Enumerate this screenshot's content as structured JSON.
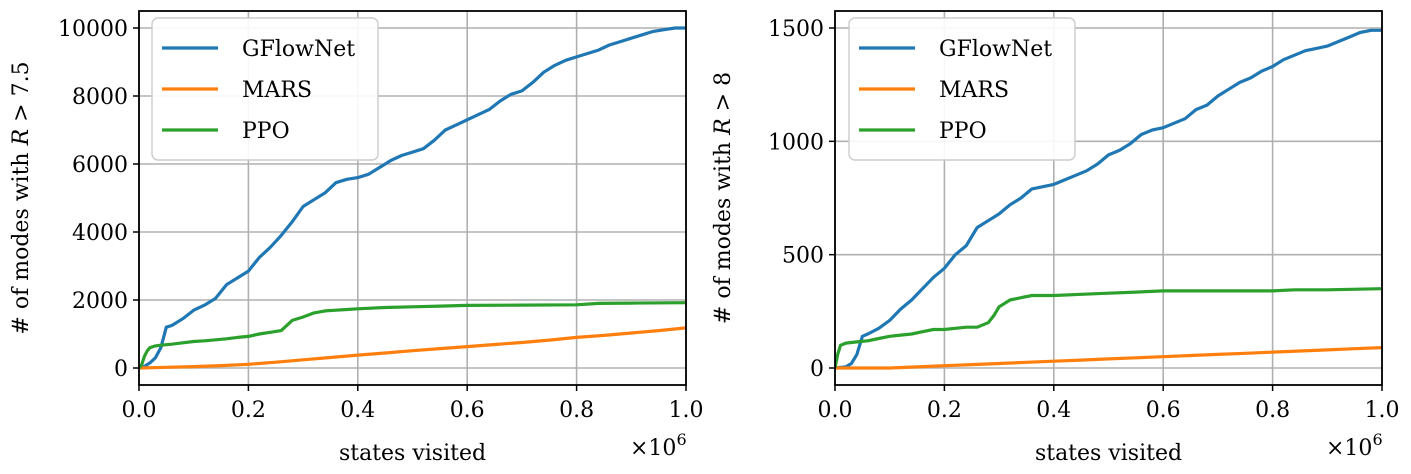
{
  "chart_data": [
    {
      "type": "line",
      "title": "",
      "xlabel": "states visited",
      "ylabel": "# of modes with R > 7.5",
      "ylabel_prefix": "# of modes with ",
      "ylabel_var": "R",
      "ylabel_suffix": " > 7.5",
      "x_scale_label": "×10",
      "x_scale_exp": "6",
      "xlim": [
        0,
        1.0
      ],
      "ylim": [
        -500,
        10500
      ],
      "xticks": [
        0.0,
        0.2,
        0.4,
        0.6,
        0.8,
        1.0
      ],
      "xtick_labels": [
        "0.0",
        "0.2",
        "0.4",
        "0.6",
        "0.8",
        "1.0"
      ],
      "yticks": [
        0,
        2000,
        4000,
        6000,
        8000,
        10000
      ],
      "ytick_labels": [
        "0",
        "2000",
        "4000",
        "6000",
        "8000",
        "10000"
      ],
      "grid": true,
      "legend_position": "upper-left",
      "series": [
        {
          "name": "GFlowNet",
          "color": "#1f77b4",
          "x": [
            0,
            0.01,
            0.02,
            0.03,
            0.04,
            0.05,
            0.06,
            0.08,
            0.1,
            0.12,
            0.14,
            0.16,
            0.18,
            0.2,
            0.22,
            0.24,
            0.26,
            0.28,
            0.3,
            0.32,
            0.34,
            0.36,
            0.38,
            0.4,
            0.42,
            0.44,
            0.46,
            0.48,
            0.5,
            0.52,
            0.54,
            0.56,
            0.58,
            0.6,
            0.62,
            0.64,
            0.66,
            0.68,
            0.7,
            0.72,
            0.74,
            0.76,
            0.78,
            0.8,
            0.82,
            0.84,
            0.86,
            0.88,
            0.9,
            0.92,
            0.94,
            0.96,
            0.98,
            1.0
          ],
          "y": [
            0,
            50,
            150,
            300,
            600,
            1200,
            1250,
            1450,
            1700,
            1850,
            2050,
            2450,
            2650,
            2850,
            3250,
            3550,
            3900,
            4300,
            4750,
            4950,
            5150,
            5450,
            5550,
            5600,
            5700,
            5900,
            6100,
            6250,
            6350,
            6450,
            6700,
            7000,
            7150,
            7300,
            7450,
            7600,
            7850,
            8050,
            8150,
            8400,
            8700,
            8900,
            9050,
            9150,
            9250,
            9350,
            9500,
            9600,
            9700,
            9800,
            9900,
            9950,
            10000,
            10000
          ]
        },
        {
          "name": "MARS",
          "color": "#ff7f0e",
          "x": [
            0,
            0.05,
            0.1,
            0.15,
            0.2,
            0.25,
            0.3,
            0.35,
            0.4,
            0.45,
            0.5,
            0.55,
            0.6,
            0.65,
            0.7,
            0.75,
            0.8,
            0.85,
            0.9,
            0.95,
            1.0
          ],
          "y": [
            0,
            20,
            40,
            70,
            110,
            170,
            240,
            310,
            380,
            440,
            510,
            570,
            630,
            690,
            750,
            820,
            900,
            960,
            1030,
            1100,
            1180
          ]
        },
        {
          "name": "PPO",
          "color": "#2ca02c",
          "x": [
            0,
            0.005,
            0.01,
            0.015,
            0.02,
            0.03,
            0.04,
            0.06,
            0.08,
            0.1,
            0.12,
            0.14,
            0.16,
            0.18,
            0.2,
            0.22,
            0.24,
            0.26,
            0.28,
            0.3,
            0.32,
            0.34,
            0.36,
            0.38,
            0.4,
            0.45,
            0.5,
            0.55,
            0.6,
            0.7,
            0.8,
            0.84,
            0.9,
            1.0
          ],
          "y": [
            0,
            100,
            350,
            500,
            600,
            650,
            670,
            700,
            740,
            780,
            800,
            830,
            860,
            900,
            930,
            1000,
            1050,
            1100,
            1400,
            1500,
            1620,
            1680,
            1700,
            1720,
            1740,
            1780,
            1800,
            1820,
            1840,
            1850,
            1860,
            1900,
            1910,
            1920
          ]
        }
      ]
    },
    {
      "type": "line",
      "title": "",
      "xlabel": "states visited",
      "ylabel": "# of modes with R > 8",
      "ylabel_prefix": "# of modes with ",
      "ylabel_var": "R",
      "ylabel_suffix": " > 8",
      "x_scale_label": "×10",
      "x_scale_exp": "6",
      "xlim": [
        0,
        1.0
      ],
      "ylim": [
        -75,
        1575
      ],
      "xticks": [
        0.0,
        0.2,
        0.4,
        0.6,
        0.8,
        1.0
      ],
      "xtick_labels": [
        "0.0",
        "0.2",
        "0.4",
        "0.6",
        "0.8",
        "1.0"
      ],
      "yticks": [
        0,
        500,
        1000,
        1500
      ],
      "ytick_labels": [
        "0",
        "500",
        "1000",
        "1500"
      ],
      "grid": true,
      "legend_position": "upper-left",
      "series": [
        {
          "name": "GFlowNet",
          "color": "#1f77b4",
          "x": [
            0,
            0.02,
            0.03,
            0.04,
            0.05,
            0.06,
            0.08,
            0.1,
            0.12,
            0.14,
            0.16,
            0.18,
            0.2,
            0.22,
            0.24,
            0.26,
            0.28,
            0.3,
            0.32,
            0.34,
            0.36,
            0.38,
            0.4,
            0.42,
            0.44,
            0.46,
            0.48,
            0.5,
            0.52,
            0.54,
            0.56,
            0.58,
            0.6,
            0.62,
            0.64,
            0.66,
            0.68,
            0.7,
            0.72,
            0.74,
            0.76,
            0.78,
            0.8,
            0.82,
            0.84,
            0.86,
            0.88,
            0.9,
            0.92,
            0.94,
            0.96,
            0.98,
            1.0
          ],
          "y": [
            0,
            5,
            20,
            60,
            140,
            150,
            175,
            210,
            260,
            300,
            350,
            400,
            440,
            500,
            540,
            620,
            650,
            680,
            720,
            750,
            790,
            800,
            810,
            830,
            850,
            870,
            900,
            940,
            960,
            990,
            1030,
            1050,
            1060,
            1080,
            1100,
            1140,
            1160,
            1200,
            1230,
            1260,
            1280,
            1310,
            1330,
            1360,
            1380,
            1400,
            1410,
            1420,
            1440,
            1460,
            1480,
            1490,
            1490
          ]
        },
        {
          "name": "MARS",
          "color": "#ff7f0e",
          "x": [
            0,
            0.1,
            0.15,
            0.2,
            0.25,
            0.3,
            0.35,
            0.4,
            0.45,
            0.5,
            0.55,
            0.6,
            0.65,
            0.7,
            0.75,
            0.8,
            0.85,
            0.9,
            0.95,
            1.0
          ],
          "y": [
            0,
            0,
            5,
            10,
            15,
            20,
            25,
            30,
            35,
            40,
            45,
            50,
            55,
            60,
            65,
            70,
            75,
            80,
            85,
            90
          ]
        },
        {
          "name": "PPO",
          "color": "#2ca02c",
          "x": [
            0,
            0.005,
            0.01,
            0.02,
            0.04,
            0.06,
            0.08,
            0.1,
            0.12,
            0.14,
            0.16,
            0.18,
            0.2,
            0.22,
            0.24,
            0.26,
            0.28,
            0.29,
            0.3,
            0.32,
            0.34,
            0.36,
            0.4,
            0.45,
            0.5,
            0.55,
            0.6,
            0.7,
            0.8,
            0.84,
            0.9,
            1.0
          ],
          "y": [
            0,
            60,
            100,
            110,
            115,
            120,
            130,
            140,
            145,
            150,
            160,
            170,
            170,
            175,
            180,
            180,
            200,
            230,
            270,
            300,
            310,
            320,
            320,
            325,
            330,
            335,
            340,
            340,
            340,
            345,
            345,
            350
          ]
        }
      ]
    }
  ]
}
